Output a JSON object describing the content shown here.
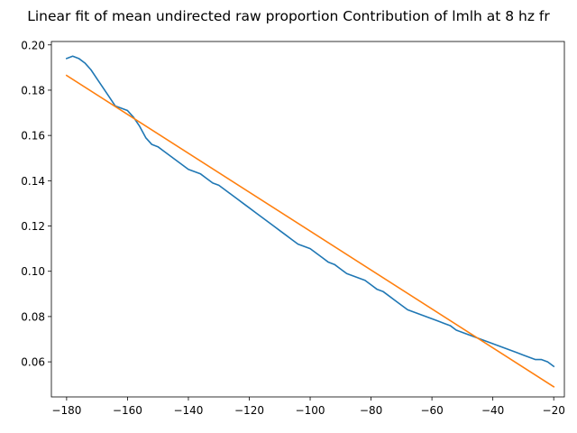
{
  "chart_data": {
    "type": "line",
    "title": "Linear fit of mean undirected raw proportion Contribution of lmlh at 8 hz fr",
    "xlabel": "",
    "ylabel": "",
    "xlim": [
      -185,
      -16.5
    ],
    "ylim": [
      0.0445,
      0.2015
    ],
    "xticks": [
      -180,
      -160,
      -140,
      -120,
      -100,
      -80,
      -60,
      -40,
      -20
    ],
    "yticks": [
      0.06,
      0.08,
      0.1,
      0.12,
      0.14,
      0.16,
      0.18,
      0.2
    ],
    "xtick_labels": [
      "−180",
      "−160",
      "−140",
      "−120",
      "−100",
      "−80",
      "−60",
      "−40",
      "−20"
    ],
    "ytick_labels": [
      "0.06",
      "0.08",
      "0.10",
      "0.12",
      "0.14",
      "0.16",
      "0.18",
      "0.20"
    ],
    "grid": false,
    "legend": "none",
    "series": [
      {
        "color": "#1f77b4",
        "x": [
          -180,
          -178,
          -176,
          -174,
          -172,
          -170,
          -168,
          -166,
          -164,
          -162,
          -160,
          -158,
          -156,
          -154,
          -152,
          -150,
          -148,
          -146,
          -144,
          -142,
          -140,
          -138,
          -136,
          -134,
          -132,
          -130,
          -128,
          -126,
          -124,
          -122,
          -120,
          -118,
          -116,
          -114,
          -112,
          -110,
          -108,
          -106,
          -104,
          -102,
          -100,
          -98,
          -96,
          -94,
          -92,
          -90,
          -88,
          -86,
          -84,
          -82,
          -80,
          -78,
          -76,
          -74,
          -72,
          -70,
          -68,
          -66,
          -64,
          -62,
          -60,
          -58,
          -56,
          -54,
          -52,
          -50,
          -48,
          -46,
          -44,
          -42,
          -40,
          -38,
          -36,
          -34,
          -32,
          -30,
          -28,
          -26,
          -24,
          -22,
          -20
        ],
        "y": [
          0.194,
          0.195,
          0.194,
          0.192,
          0.189,
          0.185,
          0.181,
          0.177,
          0.173,
          0.172,
          0.171,
          0.168,
          0.164,
          0.159,
          0.156,
          0.155,
          0.153,
          0.151,
          0.149,
          0.147,
          0.145,
          0.144,
          0.143,
          0.141,
          0.139,
          0.138,
          0.136,
          0.134,
          0.132,
          0.13,
          0.128,
          0.126,
          0.124,
          0.122,
          0.12,
          0.118,
          0.116,
          0.114,
          0.112,
          0.111,
          0.11,
          0.108,
          0.106,
          0.104,
          0.103,
          0.101,
          0.099,
          0.098,
          0.097,
          0.096,
          0.094,
          0.092,
          0.091,
          0.089,
          0.087,
          0.085,
          0.083,
          0.082,
          0.081,
          0.08,
          0.079,
          0.078,
          0.077,
          0.076,
          0.074,
          0.073,
          0.072,
          0.071,
          0.07,
          0.069,
          0.068,
          0.067,
          0.066,
          0.065,
          0.064,
          0.063,
          0.062,
          0.061,
          0.061,
          0.06,
          0.058
        ]
      },
      {
        "color": "#ff7f0e",
        "x": [
          -180,
          -20
        ],
        "y": [
          0.1865,
          0.049
        ]
      }
    ]
  }
}
